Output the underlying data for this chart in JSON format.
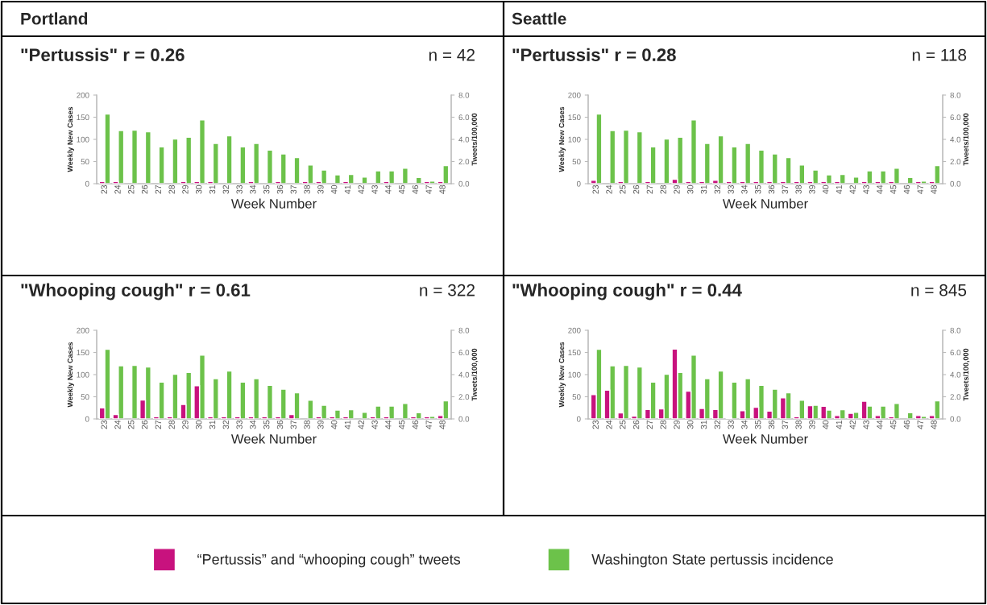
{
  "chart_data": [
    {
      "type": "bar",
      "subtitle": "Portland",
      "title": "\"Pertussis\" r = 0.26",
      "annotations": [
        "n = 42"
      ],
      "xlabel": "Week Number",
      "ylabel": "Weekly New Cases",
      "y2label": "Tweets/100,000",
      "categories": [
        "23",
        "24",
        "25",
        "26",
        "27",
        "28",
        "29",
        "30",
        "31",
        "32",
        "33",
        "34",
        "35",
        "36",
        "37",
        "38",
        "39",
        "40",
        "41",
        "42",
        "43",
        "44",
        "45",
        "46",
        "47",
        "48"
      ],
      "ylim": [
        0,
        200
      ],
      "yticks": [
        0,
        50,
        100,
        150,
        200
      ],
      "y2lim": [
        0,
        8
      ],
      "y2ticks": [
        {
          "value": 0,
          "label": "0.0"
        },
        {
          "value": 2,
          "label": "2.0"
        },
        {
          "value": 4,
          "label": "4.0"
        },
        {
          "value": 6,
          "label": "6.0"
        },
        {
          "value": 8,
          "label": "8.0"
        }
      ],
      "legend": "bottom",
      "series": [
        {
          "name": "“Pertussis” and “whooping cough” tweets",
          "color": "#c8127e",
          "axis": "y2",
          "values": [
            0.2,
            0.2,
            null,
            null,
            null,
            null,
            0.2,
            0.2,
            0.2,
            null,
            null,
            0.2,
            null,
            0.2,
            null,
            0.2,
            0.2,
            null,
            0.2,
            null,
            null,
            0.2,
            null,
            null,
            0.2,
            0.2
          ]
        },
        {
          "name": "Washington State pertussis incidence",
          "color": "#6cc24a",
          "values": [
            157,
            120,
            121,
            117,
            83,
            101,
            105,
            144,
            91,
            108,
            83,
            91,
            76,
            67,
            59,
            42,
            31,
            20,
            21,
            15,
            29,
            29,
            35,
            14,
            6,
            41
          ]
        }
      ]
    },
    {
      "type": "bar",
      "subtitle": "Seattle",
      "title": "\"Pertussis\" r = 0.28",
      "annotations": [
        "n = 118"
      ],
      "xlabel": "Week Number",
      "ylabel": "Weekly New Cases",
      "y2label": "Tweets/100,000",
      "categories": [
        "23",
        "24",
        "25",
        "26",
        "27",
        "28",
        "29",
        "30",
        "31",
        "32",
        "33",
        "34",
        "35",
        "36",
        "37",
        "38",
        "39",
        "40",
        "41",
        "42",
        "43",
        "44",
        "45",
        "46",
        "47",
        "48"
      ],
      "ylim": [
        0,
        200
      ],
      "yticks": [
        0,
        50,
        100,
        150,
        200
      ],
      "y2lim": [
        0,
        8
      ],
      "y2ticks": [
        {
          "value": 0,
          "label": "0.0"
        },
        {
          "value": 2,
          "label": "2.0"
        },
        {
          "value": 4,
          "label": "4.0"
        },
        {
          "value": 6,
          "label": "6.0"
        },
        {
          "value": 8,
          "label": "8.0"
        }
      ],
      "series": [
        {
          "color": "#c8127e",
          "axis": "y2",
          "values": [
            0.3,
            null,
            0.2,
            null,
            0.2,
            null,
            0.4,
            0.2,
            0.2,
            0.3,
            0.2,
            0.2,
            0.2,
            0.2,
            0.2,
            0.2,
            0.2,
            0.2,
            0.2,
            null,
            0.2,
            0.2,
            0.2,
            null,
            0.2,
            0.2
          ]
        },
        {
          "color": "#6cc24a",
          "values": [
            157,
            120,
            121,
            117,
            83,
            101,
            105,
            144,
            91,
            108,
            83,
            91,
            76,
            67,
            59,
            42,
            31,
            20,
            21,
            15,
            29,
            29,
            35,
            14,
            6,
            41
          ]
        }
      ]
    },
    {
      "type": "bar",
      "title": "\"Whooping cough\" r = 0.61",
      "annotations": [
        "n = 322"
      ],
      "xlabel": "Week Number",
      "ylabel": "Weekly New Cases",
      "y2label": "Tweets/100,000",
      "categories": [
        "23",
        "24",
        "25",
        "26",
        "27",
        "28",
        "29",
        "30",
        "31",
        "32",
        "33",
        "34",
        "35",
        "36",
        "37",
        "38",
        "39",
        "40",
        "41",
        "42",
        "43",
        "44",
        "45",
        "46",
        "47",
        "48"
      ],
      "ylim": [
        0,
        200
      ],
      "yticks": [
        0,
        50,
        100,
        150,
        200
      ],
      "y2lim": [
        0,
        8
      ],
      "y2ticks": [
        {
          "value": 0,
          "label": "0.0"
        },
        {
          "value": 2,
          "label": "2.0"
        },
        {
          "value": 4,
          "label": "4.0"
        },
        {
          "value": 6,
          "label": "6.0"
        },
        {
          "value": 8,
          "label": "8.0"
        }
      ],
      "series": [
        {
          "color": "#c8127e",
          "axis": "y2",
          "values": [
            1.0,
            0.4,
            null,
            1.7,
            0.2,
            0.2,
            1.3,
            3.0,
            0.2,
            0.2,
            0.2,
            0.2,
            0.2,
            0.2,
            0.4,
            null,
            0.2,
            0.2,
            0.2,
            null,
            0.2,
            0.2,
            null,
            0.2,
            0.2,
            0.3
          ]
        },
        {
          "color": "#6cc24a",
          "values": [
            157,
            120,
            121,
            117,
            83,
            101,
            105,
            144,
            91,
            108,
            83,
            91,
            76,
            67,
            59,
            42,
            31,
            20,
            21,
            15,
            29,
            29,
            35,
            14,
            6,
            41
          ]
        }
      ]
    },
    {
      "type": "bar",
      "title": "\"Whooping cough\" r = 0.44",
      "annotations": [
        "n = 845"
      ],
      "xlabel": "Week Number",
      "ylabel": "Weekly New Cases",
      "y2label": "Tweets/100,000",
      "categories": [
        "23",
        "24",
        "25",
        "26",
        "27",
        "28",
        "29",
        "30",
        "31",
        "32",
        "33",
        "34",
        "35",
        "36",
        "37",
        "38",
        "39",
        "40",
        "41",
        "42",
        "43",
        "44",
        "45",
        "46",
        "47",
        "48"
      ],
      "ylim": [
        0,
        200
      ],
      "yticks": [
        0,
        50,
        100,
        150,
        200
      ],
      "y2lim": [
        0,
        8
      ],
      "y2ticks": [
        {
          "value": 0,
          "label": "0.0"
        },
        {
          "value": 2,
          "label": "2.0"
        },
        {
          "value": 4,
          "label": "4.0"
        },
        {
          "value": 6,
          "label": "6.0"
        },
        {
          "value": 8,
          "label": "8.0"
        }
      ],
      "series": [
        {
          "color": "#c8127e",
          "axis": "y2",
          "values": [
            2.2,
            2.6,
            0.55,
            0.25,
            0.85,
            0.9,
            6.3,
            2.5,
            0.95,
            0.85,
            0.1,
            0.75,
            1.05,
            0.7,
            1.9,
            0.2,
            1.2,
            1.15,
            0.3,
            0.5,
            1.6,
            0.3,
            0.2,
            null,
            0.3,
            0.3
          ]
        },
        {
          "color": "#6cc24a",
          "values": [
            157,
            120,
            121,
            117,
            83,
            101,
            105,
            144,
            91,
            108,
            83,
            91,
            76,
            67,
            59,
            42,
            31,
            20,
            21,
            15,
            29,
            29,
            35,
            14,
            6,
            41
          ]
        }
      ]
    }
  ]
}
